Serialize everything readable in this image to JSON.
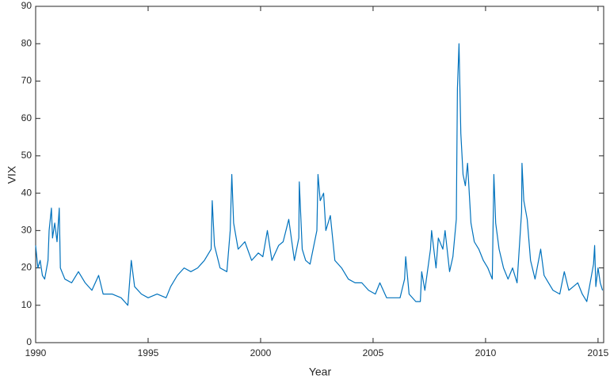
{
  "chart_data": {
    "type": "line",
    "x_label": "Year",
    "y_label": "VIX",
    "xlim": [
      1990,
      2015.25
    ],
    "ylim": [
      0,
      90
    ],
    "xticks": [
      1990,
      1995,
      2000,
      2005,
      2010,
      2015
    ],
    "yticks": [
      0,
      10,
      20,
      30,
      40,
      50,
      60,
      70,
      80,
      90
    ],
    "series": [
      {
        "name": "VIX",
        "color": "#0072bd",
        "x": [
          1990.0,
          1990.1,
          1990.2,
          1990.3,
          1990.4,
          1990.55,
          1990.6,
          1990.7,
          1990.75,
          1990.85,
          1990.95,
          1991.05,
          1991.1,
          1991.3,
          1991.6,
          1991.9,
          1992.2,
          1992.5,
          1992.8,
          1993.0,
          1993.4,
          1993.8,
          1994.1,
          1994.25,
          1994.4,
          1994.7,
          1995.0,
          1995.4,
          1995.8,
          1996.0,
          1996.3,
          1996.6,
          1996.9,
          1997.2,
          1997.5,
          1997.8,
          1997.85,
          1997.95,
          1998.2,
          1998.5,
          1998.65,
          1998.72,
          1998.8,
          1999.0,
          1999.3,
          1999.6,
          1999.9,
          2000.1,
          2000.3,
          2000.5,
          2000.8,
          2001.0,
          2001.25,
          2001.5,
          2001.7,
          2001.72,
          2001.85,
          2002.0,
          2002.2,
          2002.5,
          2002.55,
          2002.65,
          2002.8,
          2002.9,
          2003.1,
          2003.3,
          2003.6,
          2003.9,
          2004.2,
          2004.5,
          2004.8,
          2005.1,
          2005.3,
          2005.6,
          2005.9,
          2006.2,
          2006.4,
          2006.45,
          2006.6,
          2006.9,
          2007.1,
          2007.16,
          2007.3,
          2007.55,
          2007.6,
          2007.8,
          2007.9,
          2008.1,
          2008.2,
          2008.4,
          2008.55,
          2008.7,
          2008.75,
          2008.82,
          2008.9,
          2009.0,
          2009.1,
          2009.2,
          2009.35,
          2009.5,
          2009.7,
          2009.9,
          2010.1,
          2010.3,
          2010.37,
          2010.45,
          2010.6,
          2010.8,
          2011.0,
          2011.2,
          2011.4,
          2011.6,
          2011.62,
          2011.7,
          2011.85,
          2012.0,
          2012.2,
          2012.45,
          2012.6,
          2012.8,
          2013.0,
          2013.3,
          2013.5,
          2013.7,
          2013.9,
          2014.1,
          2014.3,
          2014.5,
          2014.8,
          2014.85,
          2014.9,
          2015.0,
          2015.1,
          2015.2
        ],
        "values": [
          26,
          20,
          22,
          18,
          17,
          22,
          30,
          36,
          28,
          32,
          27,
          36,
          20,
          17,
          16,
          19,
          16,
          14,
          18,
          13,
          13,
          12,
          10,
          22,
          15,
          13,
          12,
          13,
          12,
          15,
          18,
          20,
          19,
          20,
          22,
          25,
          38,
          26,
          20,
          19,
          30,
          45,
          32,
          25,
          27,
          22,
          24,
          23,
          30,
          22,
          26,
          27,
          33,
          22,
          28,
          43,
          25,
          22,
          21,
          30,
          45,
          38,
          40,
          30,
          34,
          22,
          20,
          17,
          16,
          16,
          14,
          13,
          16,
          12,
          12,
          12,
          17,
          23,
          13,
          11,
          11,
          19,
          14,
          25,
          30,
          20,
          28,
          25,
          30,
          19,
          23,
          33,
          68,
          80,
          56,
          45,
          42,
          48,
          32,
          27,
          25,
          22,
          20,
          17,
          45,
          32,
          25,
          20,
          17,
          20,
          16,
          35,
          48,
          38,
          33,
          22,
          17,
          25,
          18,
          16,
          14,
          13,
          19,
          14,
          15,
          16,
          13,
          11,
          21,
          26,
          15,
          20,
          16,
          14
        ]
      }
    ]
  }
}
